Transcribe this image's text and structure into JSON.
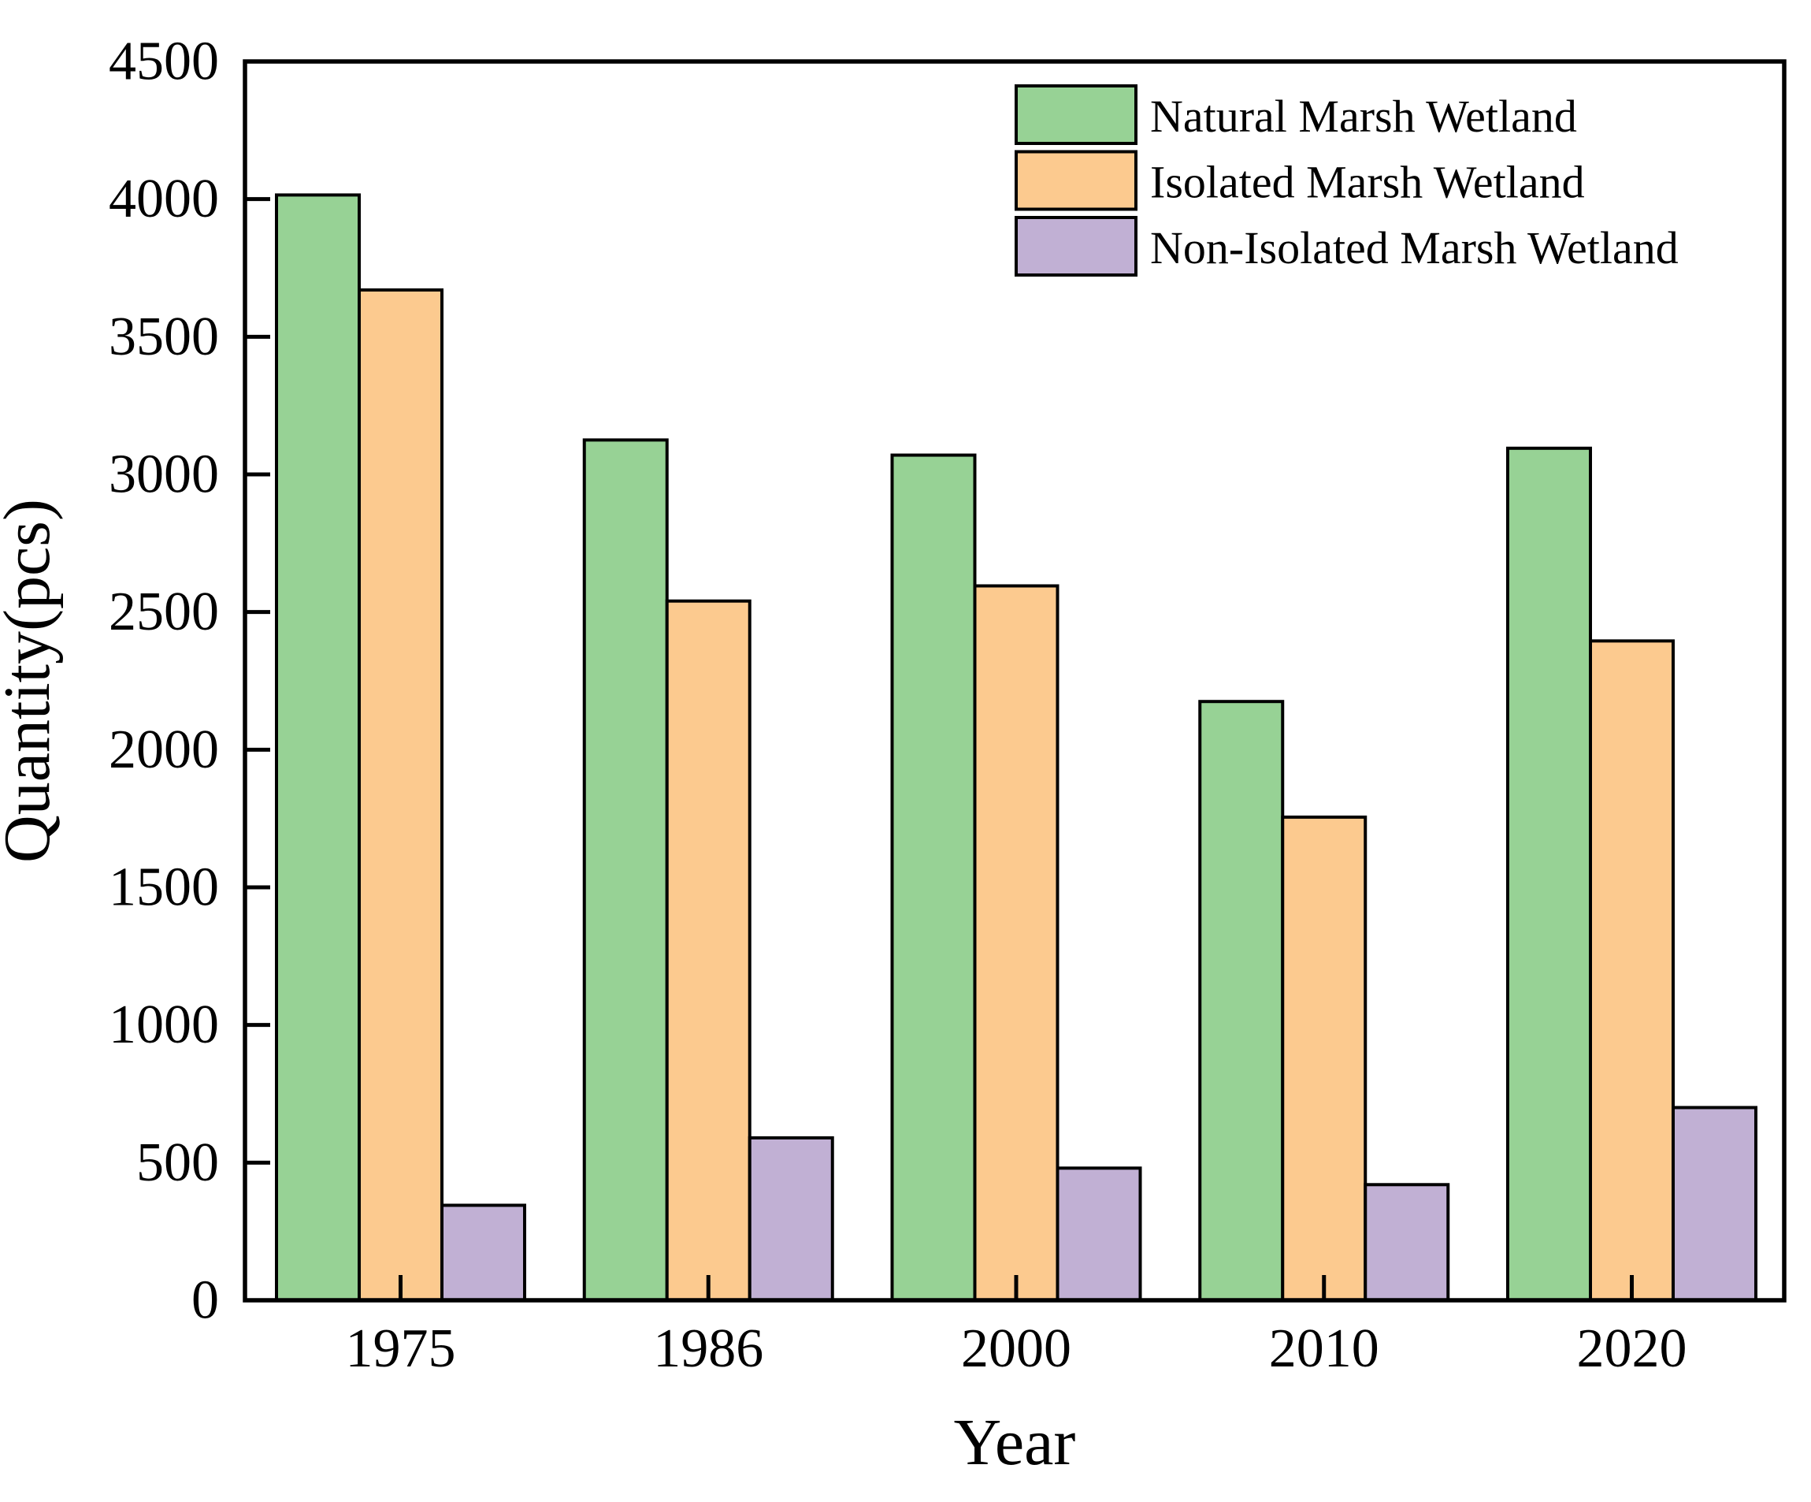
{
  "figure": {
    "background": "#ffffff",
    "axis_color": "#000000"
  },
  "chart_data": {
    "type": "bar",
    "title": "",
    "xlabel": "Year",
    "ylabel": "Quantity(pcs)",
    "categories": [
      "1975",
      "1986",
      "2000",
      "2010",
      "2020"
    ],
    "series": [
      {
        "key": "natural",
        "name": "Natural Marsh Wetland",
        "color": "#97D295",
        "values": [
          4015,
          3125,
          3070,
          2175,
          3095
        ]
      },
      {
        "key": "isolated",
        "name": "Isolated Marsh Wetland",
        "color": "#FCCA8F",
        "values": [
          3670,
          2540,
          2595,
          1755,
          2395
        ]
      },
      {
        "key": "non-isolated",
        "name": "Non-Isolated Marsh Wetland",
        "color": "#C1B0D4",
        "values": [
          345,
          590,
          480,
          420,
          700
        ]
      }
    ],
    "ylim": [
      0,
      4500
    ],
    "yticks": [
      0,
      500,
      1000,
      1500,
      2000,
      2500,
      3000,
      3500,
      4000,
      4500
    ],
    "grid": false,
    "legend_position": "top-right",
    "bar_edge_color": "#000000"
  }
}
